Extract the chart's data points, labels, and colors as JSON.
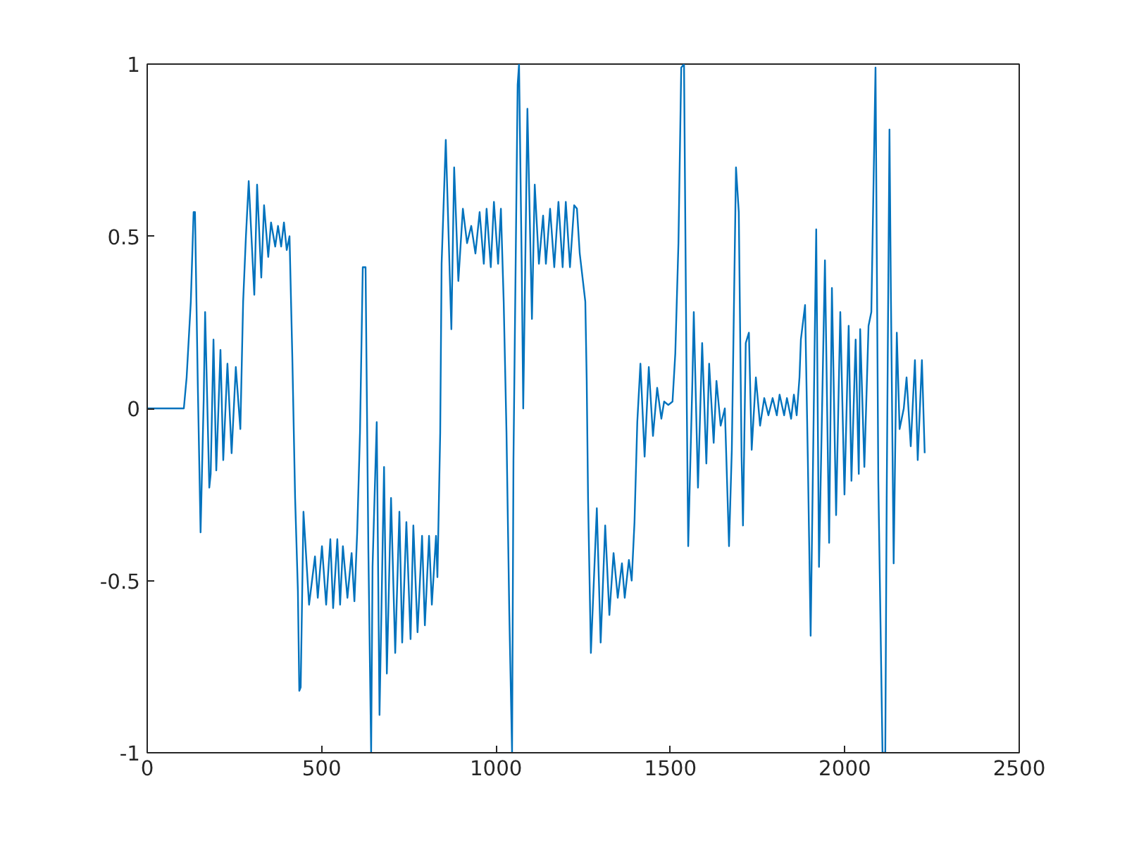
{
  "chart_data": {
    "type": "line",
    "xlim": [
      0,
      2500
    ],
    "ylim": [
      -1,
      1
    ],
    "xticks": [
      0,
      500,
      1000,
      1500,
      2000,
      2500
    ],
    "yticks": [
      -1,
      {
        "value": -0.5,
        "label": "-0.5"
      },
      0,
      {
        "value": 0.5,
        "label": "0.5"
      },
      1
    ],
    "grid": false,
    "marker": "none",
    "line_style": "solid",
    "series": [
      {
        "color": "#0072bd",
        "x": [
          0,
          105,
          113,
          125,
          133,
          137,
          145,
          153,
          162,
          166,
          178,
          182,
          190,
          198,
          210,
          218,
          230,
          242,
          254,
          267,
          275,
          283,
          291,
          307,
          315,
          327,
          335,
          347,
          355,
          367,
          375,
          384,
          392,
          400,
          408,
          416,
          424,
          432,
          436,
          440,
          448,
          464,
          481,
          489,
          501,
          513,
          525,
          533,
          545,
          553,
          561,
          574,
          586,
          594,
          602,
          610,
          618,
          626,
          634,
          642,
          646,
          658,
          666,
          679,
          687,
          699,
          711,
          723,
          731,
          743,
          755,
          763,
          775,
          788,
          796,
          808,
          816,
          828,
          832,
          840,
          844,
          856,
          872,
          880,
          892,
          905,
          917,
          929,
          941,
          953,
          965,
          973,
          985,
          994,
          1006,
          1014,
          1022,
          1030,
          1038,
          1046,
          1050,
          1062,
          1066,
          1074,
          1078,
          1086,
          1090,
          1103,
          1111,
          1123,
          1135,
          1143,
          1155,
          1167,
          1179,
          1191,
          1200,
          1212,
          1224,
          1232,
          1240,
          1248,
          1256,
          1260,
          1264,
          1272,
          1289,
          1300,
          1313,
          1325,
          1337,
          1349,
          1361,
          1369,
          1381,
          1389,
          1397,
          1405,
          1414,
          1426,
          1438,
          1450,
          1462,
          1474,
          1482,
          1494,
          1506,
          1514,
          1523,
          1531,
          1539,
          1547,
          1551,
          1563,
          1567,
          1579,
          1591,
          1603,
          1611,
          1624,
          1632,
          1644,
          1656,
          1668,
          1676,
          1688,
          1696,
          1704,
          1708,
          1716,
          1725,
          1733,
          1745,
          1757,
          1769,
          1781,
          1793,
          1805,
          1813,
          1826,
          1834,
          1846,
          1854,
          1862,
          1870,
          1874,
          1886,
          1894,
          1902,
          1910,
          1918,
          1926,
          1943,
          1955,
          1963,
          1975,
          1987,
          1999,
          2011,
          2019,
          2031,
          2040,
          2044,
          2056,
          2068,
          2076,
          2088,
          2096,
          2108,
          2116,
          2120,
          2128,
          2132,
          2140,
          2149,
          2157,
          2169,
          2177,
          2189,
          2201,
          2209,
          2221,
          2229
        ],
        "values": [
          0,
          0,
          0.09,
          0.31,
          0.57,
          0.57,
          0.07,
          -0.36,
          0.03,
          0.28,
          -0.23,
          -0.19,
          0.2,
          -0.18,
          0.17,
          -0.15,
          0.13,
          -0.13,
          0.12,
          -0.06,
          0.31,
          0.5,
          0.66,
          0.33,
          0.65,
          0.38,
          0.59,
          0.44,
          0.54,
          0.47,
          0.53,
          0.47,
          0.54,
          0.46,
          0.5,
          0.15,
          -0.26,
          -0.53,
          -0.82,
          -0.81,
          -0.3,
          -0.57,
          -0.43,
          -0.55,
          -0.4,
          -0.57,
          -0.38,
          -0.58,
          -0.38,
          -0.57,
          -0.4,
          -0.55,
          -0.42,
          -0.56,
          -0.36,
          -0.07,
          0.41,
          0.41,
          -0.41,
          -1,
          -0.46,
          -0.04,
          -0.89,
          -0.17,
          -0.77,
          -0.26,
          -0.71,
          -0.3,
          -0.68,
          -0.33,
          -0.67,
          -0.34,
          -0.65,
          -0.37,
          -0.63,
          -0.37,
          -0.57,
          -0.37,
          -0.49,
          -0.07,
          0.42,
          0.78,
          0.23,
          0.7,
          0.37,
          0.58,
          0.48,
          0.53,
          0.45,
          0.57,
          0.42,
          0.58,
          0.41,
          0.6,
          0.42,
          0.58,
          0.31,
          -0.07,
          -0.59,
          -1,
          -0.15,
          0.94,
          1,
          0.39,
          0,
          0.58,
          0.87,
          0.26,
          0.65,
          0.42,
          0.56,
          0.42,
          0.58,
          0.41,
          0.6,
          0.41,
          0.6,
          0.41,
          0.59,
          0.58,
          0.45,
          0.38,
          0.31,
          0.08,
          -0.27,
          -0.71,
          -0.29,
          -0.68,
          -0.34,
          -0.6,
          -0.42,
          -0.55,
          -0.45,
          -0.55,
          -0.44,
          -0.5,
          -0.33,
          -0.04,
          0.13,
          -0.14,
          0.12,
          -0.08,
          0.06,
          -0.03,
          0.02,
          0.01,
          0.02,
          0.16,
          0.48,
          0.99,
          1,
          0,
          -0.4,
          0.08,
          0.28,
          -0.23,
          0.19,
          -0.16,
          0.13,
          -0.1,
          0.08,
          -0.05,
          0,
          -0.4,
          -0.12,
          0.7,
          0.57,
          -0.14,
          -0.34,
          0.19,
          0.22,
          -0.12,
          0.09,
          -0.05,
          0.03,
          -0.02,
          0.03,
          -0.02,
          0.04,
          -0.02,
          0.03,
          -0.03,
          0.04,
          -0.02,
          0.09,
          0.2,
          0.3,
          -0.15,
          -0.66,
          -0.07,
          0.52,
          -0.46,
          0.43,
          -0.39,
          0.35,
          -0.31,
          0.28,
          -0.25,
          0.24,
          -0.21,
          0.2,
          -0.19,
          0.23,
          -0.17,
          0.24,
          0.28,
          0.99,
          -0.21,
          -1,
          -1,
          -0.26,
          0.81,
          0.34,
          -0.45,
          0.22,
          -0.06,
          0,
          0.09,
          -0.11,
          0.14,
          -0.15,
          0.14,
          -0.13
        ]
      }
    ]
  }
}
